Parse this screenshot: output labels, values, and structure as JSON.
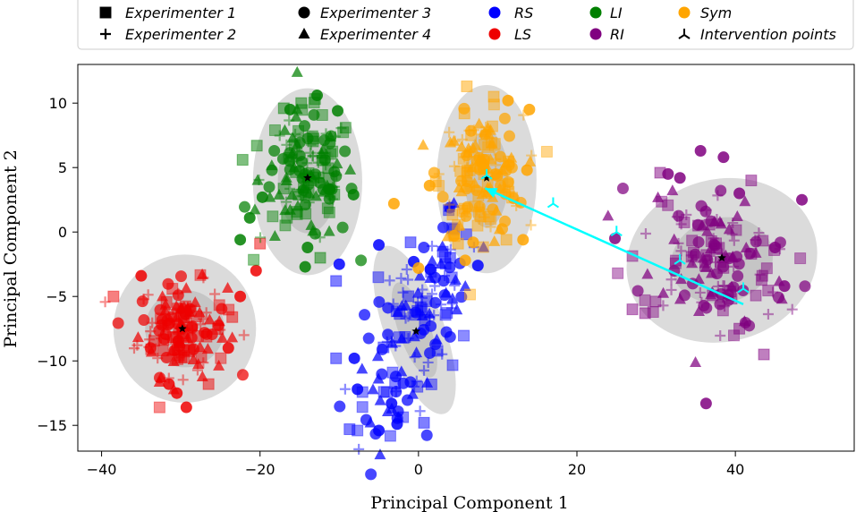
{
  "chart_data": {
    "type": "scatter",
    "title": "",
    "xlabel": "Principal Component 1",
    "ylabel": "Principal Component 2",
    "xlim": [
      -43,
      55
    ],
    "ylim": [
      -17,
      13
    ],
    "x_ticks": [
      -40,
      -20,
      0,
      20,
      40
    ],
    "y_ticks": [
      -15,
      -10,
      -5,
      0,
      5,
      10
    ],
    "x_tick_labels": [
      "−40",
      "−20",
      "0",
      "20",
      "40"
    ],
    "y_tick_labels": [
      "−15",
      "−10",
      "−5",
      "0",
      "5",
      "10"
    ],
    "grid": false,
    "legend_position": "top",
    "legend": [
      {
        "label": "Experimenter 1",
        "kind": "marker",
        "marker": "square"
      },
      {
        "label": "Experimenter 2",
        "kind": "marker",
        "marker": "plus"
      },
      {
        "label": "Experimenter 3",
        "kind": "marker",
        "marker": "circle"
      },
      {
        "label": "Experimenter 4",
        "kind": "marker",
        "marker": "triangle"
      },
      {
        "label": "RS",
        "kind": "color",
        "color": "#0000ff"
      },
      {
        "label": "LS",
        "kind": "color",
        "color": "#ee0000"
      },
      {
        "label": "LI",
        "kind": "color",
        "color": "#008000"
      },
      {
        "label": "RI",
        "kind": "color",
        "color": "#800080"
      },
      {
        "label": "Sym",
        "kind": "color",
        "color": "#ffa500"
      },
      {
        "label": "Intervention points",
        "kind": "marker",
        "marker": "tri"
      }
    ],
    "series": [
      {
        "name": "RS",
        "color": "#0000ff",
        "mean": [
          -0.3,
          -7.7
        ],
        "spread": [
          4.0,
          2.8
        ],
        "ellipse_center": [
          -0.5,
          -7.6
        ],
        "ellipse_axes": [
          7.5,
          13.8
        ],
        "ellipse_angle": -20,
        "inner_ellipse_axes": [
          4.0,
          7.8
        ],
        "extra_points": [
          [
            -10.4,
            -3.8
          ],
          [
            -10.0,
            -2.5
          ],
          [
            -5.0,
            -1.0
          ],
          [
            -1.0,
            -0.8
          ],
          [
            -0.6,
            -2.3
          ],
          [
            7.5,
            -2.6
          ],
          [
            -8.7,
            -15.3
          ],
          [
            -5.0,
            -15.4
          ],
          [
            -2.7,
            -14.9
          ],
          [
            0.7,
            -14.8
          ],
          [
            -7.7,
            -12.2
          ],
          [
            -8.1,
            -9.8
          ],
          [
            -10.4,
            -9.8
          ],
          [
            -3.4,
            -13.3
          ],
          [
            1.5,
            -2.9
          ],
          [
            4.0,
            -2.0
          ]
        ]
      },
      {
        "name": "LS",
        "color": "#ee0000",
        "mean": [
          -29.8,
          -7.5
        ],
        "spread": [
          2.8,
          1.8
        ],
        "ellipse_center": [
          -29.5,
          -7.5
        ],
        "ellipse_axes": [
          18.0,
          11.5
        ],
        "ellipse_angle": 0,
        "inner_ellipse_axes": [
          10.0,
          6.0
        ],
        "extra_points": [
          [
            -38.5,
            -5.0
          ],
          [
            -35.0,
            -3.4
          ],
          [
            -29.3,
            -13.6
          ],
          [
            -23.5,
            -6.6
          ],
          [
            -22.5,
            -5.0
          ],
          [
            -20.5,
            -3.0
          ],
          [
            -20.0,
            -0.9
          ],
          [
            -30.5,
            -12.5
          ],
          [
            -31.5,
            -11.8
          ],
          [
            -26.5,
            -11.8
          ],
          [
            -24.0,
            -9.0
          ]
        ]
      },
      {
        "name": "LI",
        "color": "#008000",
        "mean": [
          -14.0,
          4.2
        ],
        "spread": [
          3.0,
          2.5
        ],
        "ellipse_center": [
          -14.0,
          3.9
        ],
        "ellipse_axes": [
          13.8,
          14.5
        ],
        "ellipse_angle": 0,
        "inner_ellipse_axes": [
          7.5,
          8.0
        ],
        "extra_points": [
          [
            -22.2,
            5.6
          ],
          [
            -21.3,
            1.1
          ],
          [
            -19.7,
            2.7
          ],
          [
            -20.4,
            6.7
          ],
          [
            -22.5,
            -0.6
          ],
          [
            -11.2,
            3.3
          ],
          [
            -14.8,
            10.0
          ],
          [
            -12.8,
            10.6
          ],
          [
            -10.2,
            9.4
          ],
          [
            -17.0,
            9.6
          ],
          [
            -8.2,
            2.9
          ],
          [
            -14.3,
            -2.7
          ],
          [
            -12.4,
            -2.0
          ],
          [
            -14.0,
            -1.2
          ],
          [
            -16.2,
            9.5
          ]
        ]
      },
      {
        "name": "Sym",
        "color": "#ffa500",
        "mean": [
          8.0,
          4.4
        ],
        "spread": [
          2.6,
          2.3
        ],
        "ellipse_center": [
          8.6,
          4.1
        ],
        "ellipse_axes": [
          12.6,
          14.6
        ],
        "ellipse_angle": 0,
        "inner_ellipse_axes": [
          5.5,
          7.5
        ],
        "extra_points": [
          [
            6.1,
            11.3
          ],
          [
            -3.1,
            2.2
          ],
          [
            1.4,
            3.6
          ],
          [
            5.0,
            -0.9
          ],
          [
            5.9,
            -2.2
          ],
          [
            6.9,
            -0.8
          ],
          [
            11.1,
            -0.6
          ],
          [
            13.2,
            -0.6
          ],
          [
            13.7,
            4.8
          ],
          [
            9.5,
            10.5
          ],
          [
            11.3,
            10.2
          ],
          [
            14.0,
            9.5
          ],
          [
            5.8,
            9.2
          ],
          [
            0.0,
            -2.8
          ],
          [
            4.5,
            -0.3
          ],
          [
            8.9,
            1.2
          ]
        ]
      },
      {
        "name": "RI",
        "color": "#800080",
        "mean": [
          37.5,
          -2.2
        ],
        "spread": [
          4.8,
          2.9
        ],
        "ellipse_center": [
          38.3,
          -2.2
        ],
        "ellipse_axes": [
          24.3,
          12.6
        ],
        "ellipse_angle": -15,
        "inner_ellipse_axes": [
          13.0,
          6.6
        ],
        "extra_points": [
          [
            28.6,
            -6.3
          ],
          [
            35.6,
            6.3
          ],
          [
            36.3,
            -13.3
          ],
          [
            43.6,
            -9.5
          ],
          [
            48.4,
            2.5
          ],
          [
            46.2,
            -4.2
          ],
          [
            27.0,
            -6.0
          ],
          [
            40.5,
            3.0
          ],
          [
            38.5,
            5.8
          ],
          [
            42.0,
            4.0
          ],
          [
            45.0,
            -1.2
          ],
          [
            24.8,
            -0.5
          ],
          [
            30.5,
            4.6
          ],
          [
            31.5,
            4.5
          ],
          [
            33.0,
            4.2
          ],
          [
            40.5,
            -7.5
          ]
        ]
      }
    ],
    "cluster_centers": [
      [
        -0.3,
        -7.7
      ],
      [
        -29.8,
        -7.5
      ],
      [
        -14.0,
        4.2
      ],
      [
        8.6,
        4.2
      ],
      [
        38.3,
        -2.0
      ]
    ],
    "intervention_points": [
      [
        8.6,
        4.4
      ],
      [
        17.0,
        2.2
      ],
      [
        25.0,
        0.0
      ],
      [
        33.0,
        -2.2
      ],
      [
        41.0,
        -4.4
      ]
    ],
    "intervention_arrow": {
      "from": [
        41.0,
        -5.6
      ],
      "to": [
        8.4,
        3.4
      ],
      "color": "#00ffff"
    }
  }
}
